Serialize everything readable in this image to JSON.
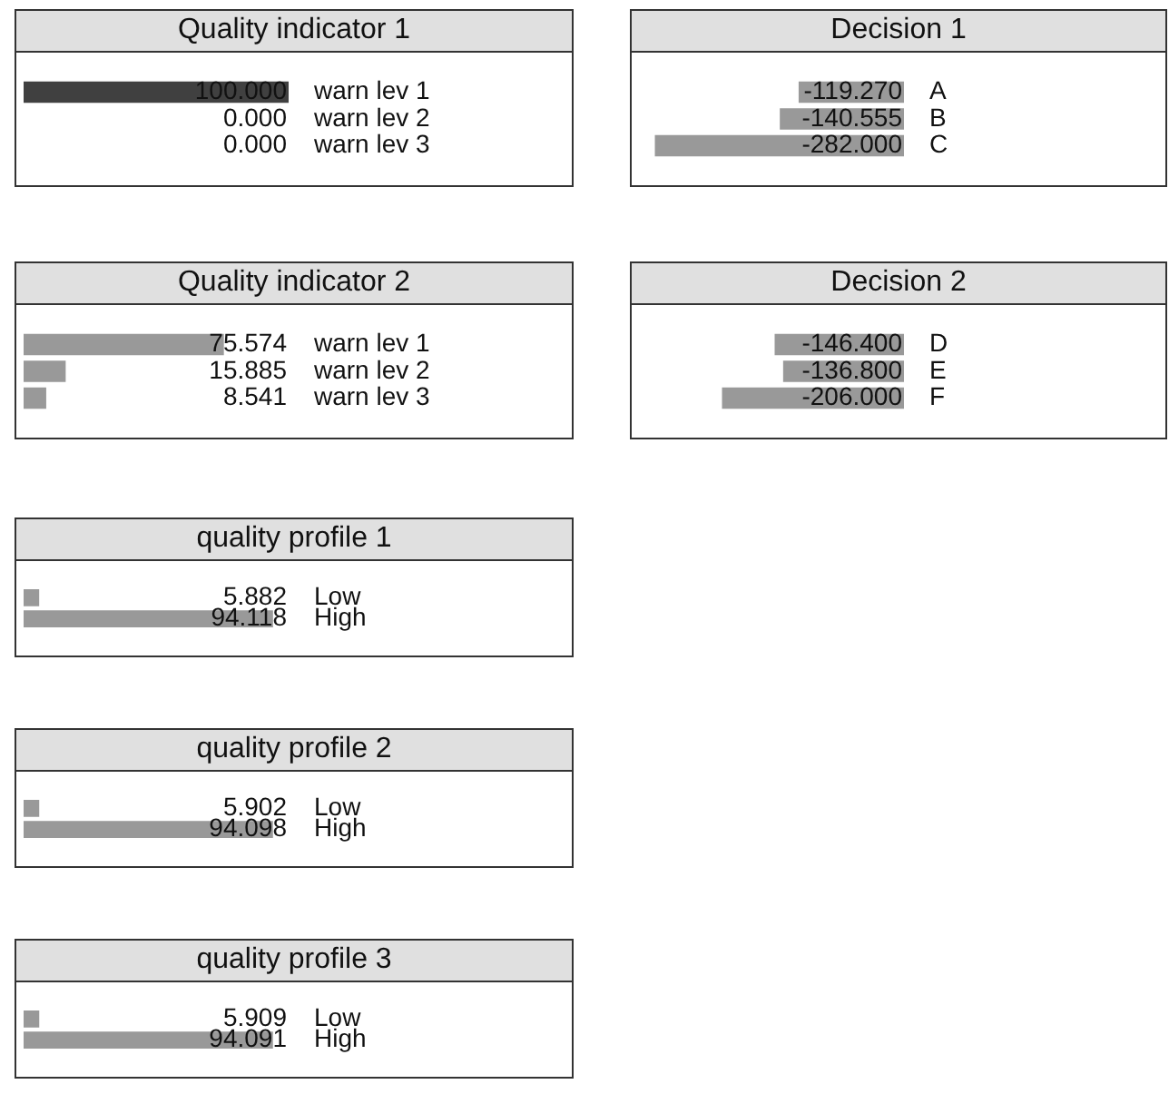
{
  "chart_data": [
    {
      "type": "bar",
      "orientation": "horizontal",
      "title": "Quality indicator 1",
      "categories": [
        "warn lev 1",
        "warn lev 2",
        "warn lev 3"
      ],
      "values": [
        100,
        0,
        0
      ],
      "value_labels": [
        "100.000",
        "0.000",
        "0.000"
      ],
      "colors": [
        "#404040",
        "#404040",
        "#404040"
      ],
      "tick_labels": "y"
    },
    {
      "type": "bar",
      "orientation": "horizontal",
      "title": "Decision 1",
      "categories": [
        "A",
        "B",
        "C"
      ],
      "values": [
        -119.27,
        -140.555,
        -282
      ],
      "value_labels": [
        "-119.270",
        "-140.555",
        "-282.000"
      ],
      "colors": [
        "#999999",
        "#999999",
        "#999999"
      ],
      "tick_labels": "y"
    },
    {
      "type": "bar",
      "orientation": "horizontal",
      "title": "Quality indicator 2",
      "categories": [
        "warn lev 1",
        "warn lev 2",
        "warn lev 3"
      ],
      "values": [
        75.574,
        15.885,
        8.541
      ],
      "value_labels": [
        "75.574",
        "15.885",
        "8.541"
      ],
      "colors": [
        "#999999",
        "#999999",
        "#999999"
      ],
      "tick_labels": "y"
    },
    {
      "type": "bar",
      "orientation": "horizontal",
      "title": "Decision 2",
      "categories": [
        "D",
        "E",
        "F"
      ],
      "values": [
        -146.4,
        -136.8,
        -206
      ],
      "value_labels": [
        "-146.400",
        "-136.800",
        "-206.000"
      ],
      "colors": [
        "#999999",
        "#999999",
        "#999999"
      ],
      "tick_labels": "y"
    },
    {
      "type": "bar",
      "orientation": "horizontal",
      "title": "quality profile 1",
      "categories": [
        "Low",
        "High"
      ],
      "values": [
        5.882,
        94.118
      ],
      "value_labels": [
        "5.882",
        "94.118"
      ],
      "colors": [
        "#999999",
        "#999999"
      ],
      "tick_labels": "y"
    },
    {
      "type": "bar",
      "orientation": "horizontal",
      "title": "quality profile 2",
      "categories": [
        "Low",
        "High"
      ],
      "values": [
        5.902,
        94.098
      ],
      "value_labels": [
        "5.902",
        "94.098"
      ],
      "colors": [
        "#999999",
        "#999999"
      ],
      "tick_labels": "y"
    },
    {
      "type": "bar",
      "orientation": "horizontal",
      "title": "quality profile 3",
      "categories": [
        "Low",
        "High"
      ],
      "values": [
        5.909,
        94.091
      ],
      "value_labels": [
        "5.909",
        "94.091"
      ],
      "colors": [
        "#999999",
        "#999999"
      ],
      "tick_labels": "y"
    }
  ]
}
